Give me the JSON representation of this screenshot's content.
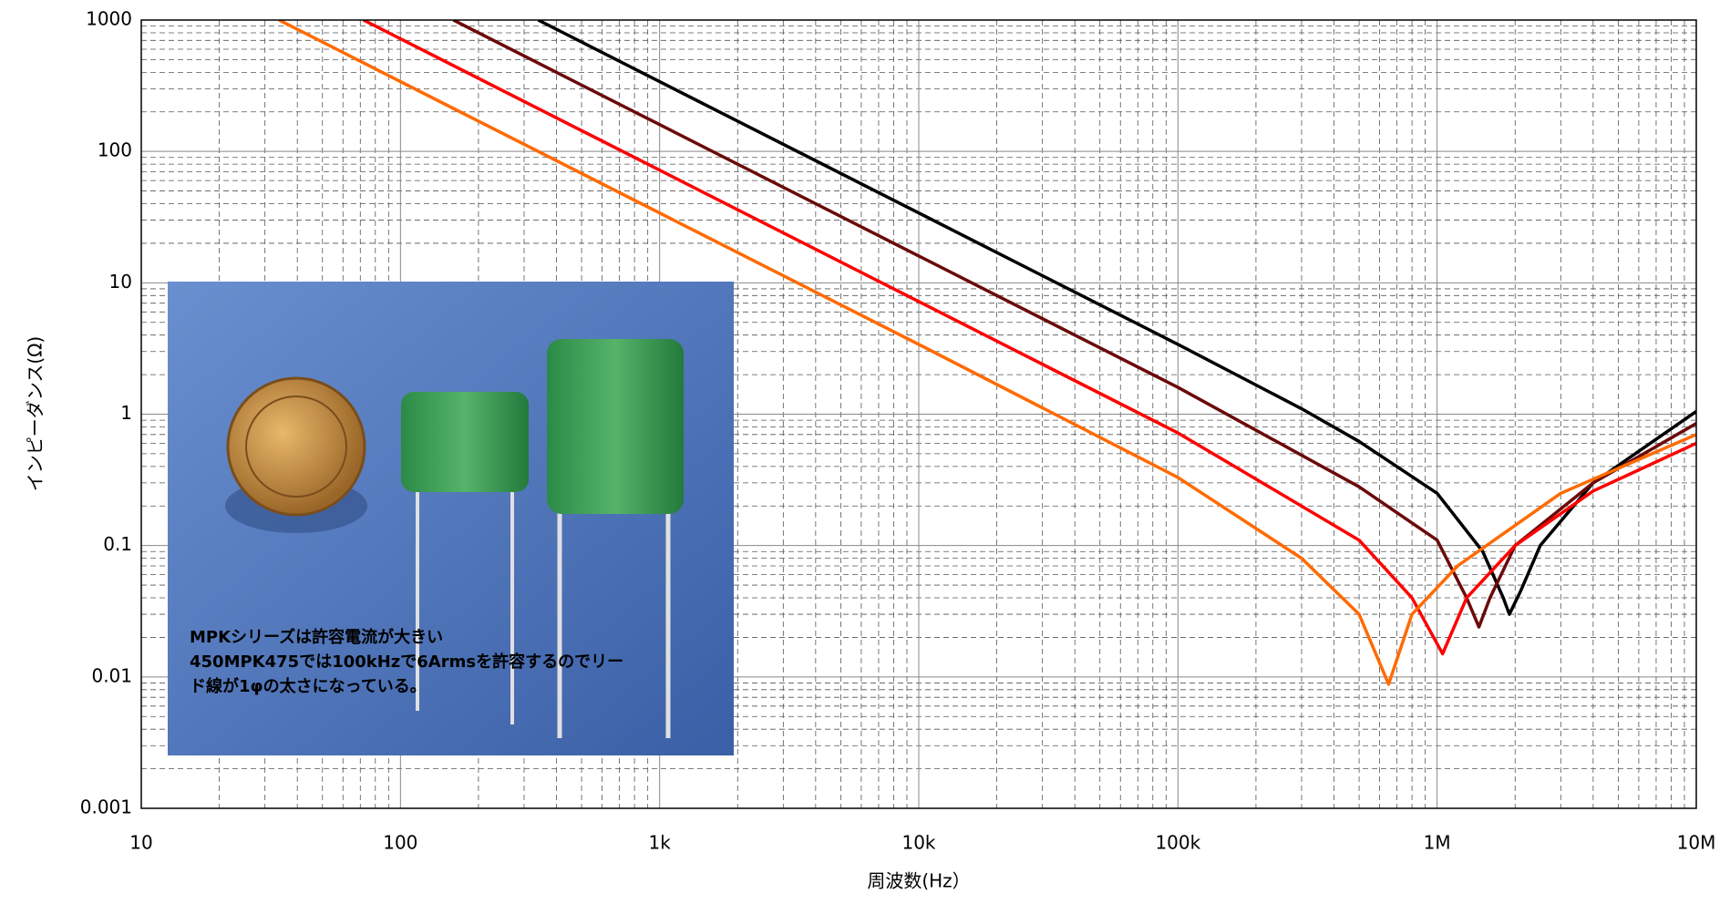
{
  "chart_data": {
    "type": "line",
    "x_label": "周波数(Hz）",
    "y_label": "インピーダンス(Ω)",
    "log_x": true,
    "log_y": true,
    "grid": true,
    "minor_grid": true,
    "xlim": [
      10,
      10000000
    ],
    "xticks": [
      10,
      100,
      {
        "value": 1000,
        "label": "1k"
      },
      {
        "value": 10000,
        "label": "10k"
      },
      {
        "value": 100000,
        "label": "100k"
      },
      {
        "value": 1000000,
        "label": "1M"
      },
      {
        "value": 10000000,
        "label": "10M"
      }
    ],
    "ylim": [
      0.001,
      1000
    ],
    "yticks": [
      0.001,
      0.01,
      0.1,
      1,
      10,
      100,
      1000
    ],
    "series": [
      {
        "color": "#000000",
        "x": [
          340,
          1000,
          10000,
          100000,
          300000,
          500000,
          1000000,
          1500000,
          1800000,
          1900000,
          2100000,
          2500000,
          4000000,
          10000000
        ],
        "values": [
          1000,
          340,
          34,
          3.4,
          1.1,
          0.62,
          0.25,
          0.09,
          0.04,
          0.03,
          0.045,
          0.1,
          0.3,
          1.05
        ]
      },
      {
        "color": "#6b0a0a",
        "x": [
          160,
          1000,
          10000,
          100000,
          500000,
          1000000,
          1300000,
          1450000,
          1600000,
          2000000,
          4000000,
          10000000
        ],
        "values": [
          1000,
          160,
          16,
          1.6,
          0.28,
          0.11,
          0.04,
          0.024,
          0.04,
          0.1,
          0.3,
          0.85
        ]
      },
      {
        "color": "#ff0000",
        "x": [
          72,
          1000,
          10000,
          100000,
          500000,
          800000,
          1050000,
          1300000,
          2000000,
          4000000,
          10000000
        ],
        "values": [
          1000,
          72,
          7.2,
          0.72,
          0.11,
          0.04,
          0.015,
          0.04,
          0.1,
          0.26,
          0.6
        ]
      },
      {
        "color": "#ff6a00",
        "x": [
          34,
          1000,
          10000,
          100000,
          300000,
          500000,
          650000,
          800000,
          1200000,
          3000000,
          10000000
        ],
        "values": [
          1000,
          34,
          3.4,
          0.33,
          0.08,
          0.03,
          0.0088,
          0.03,
          0.07,
          0.25,
          0.7
        ]
      }
    ],
    "annotations": [
      "MPKシリーズは許容電流が大きい",
      "450MPK475では100kHzで6Armsを許容するのでリー",
      "ド線が1φの太さになっている。"
    ]
  }
}
